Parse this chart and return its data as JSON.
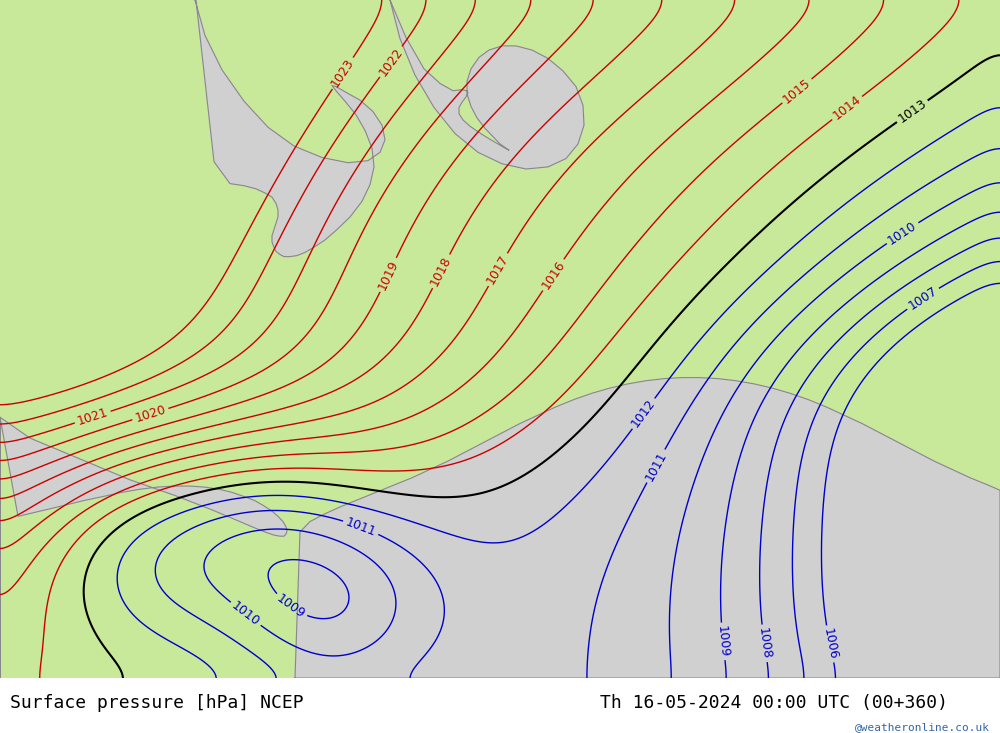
{
  "title_left": "Surface pressure [hPa] NCEP",
  "title_right": "Th 16-05-2024 00:00 UTC (00+360)",
  "watermark": "@weatheronline.co.uk",
  "bg_land_color": "#c8e89a",
  "bg_sea_color": "#d0d0d0",
  "contour_color_low": "#0000cc",
  "contour_color_red": "#cc0000",
  "contour_color_black": "#000000",
  "coast_color": "#888888",
  "label_fontsize": 9,
  "title_fontsize": 13,
  "figsize": [
    10.0,
    7.33
  ],
  "dpi": 100
}
